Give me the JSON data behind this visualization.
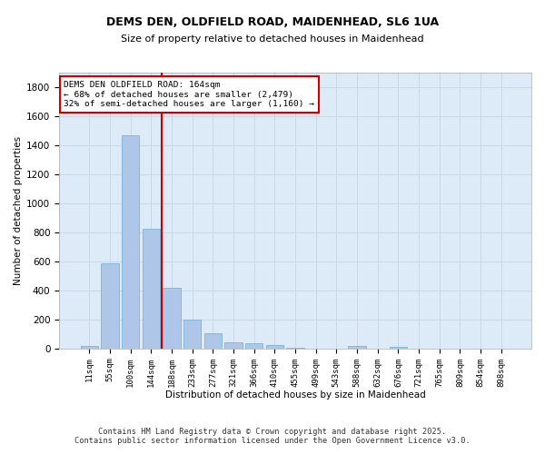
{
  "title_line1": "DEMS DEN, OLDFIELD ROAD, MAIDENHEAD, SL6 1UA",
  "title_line2": "Size of property relative to detached houses in Maidenhead",
  "xlabel": "Distribution of detached houses by size in Maidenhead",
  "ylabel": "Number of detached properties",
  "categories": [
    "11sqm",
    "55sqm",
    "100sqm",
    "144sqm",
    "188sqm",
    "233sqm",
    "277sqm",
    "321sqm",
    "366sqm",
    "410sqm",
    "455sqm",
    "499sqm",
    "543sqm",
    "588sqm",
    "632sqm",
    "676sqm",
    "721sqm",
    "765sqm",
    "809sqm",
    "854sqm",
    "898sqm"
  ],
  "values": [
    15,
    590,
    1470,
    825,
    415,
    200,
    105,
    40,
    35,
    22,
    8,
    0,
    0,
    15,
    0,
    12,
    0,
    0,
    0,
    0,
    0
  ],
  "bar_color": "#aec6e8",
  "bar_edge_color": "#6aaed6",
  "vline_idx": 3,
  "vline_color": "#cc0000",
  "ylim": [
    0,
    1900
  ],
  "yticks": [
    0,
    200,
    400,
    600,
    800,
    1000,
    1200,
    1400,
    1600,
    1800
  ],
  "annotation_text": "DEMS DEN OLDFIELD ROAD: 164sqm\n← 68% of detached houses are smaller (2,479)\n32% of semi-detached houses are larger (1,160) →",
  "annotation_box_color": "#ffffff",
  "annotation_box_edge": "#cc0000",
  "footer": "Contains HM Land Registry data © Crown copyright and database right 2025.\nContains public sector information licensed under the Open Government Licence v3.0.",
  "bg_color": "#ffffff",
  "grid_color": "#c8d8e8",
  "axes_bg": "#ddeaf7"
}
